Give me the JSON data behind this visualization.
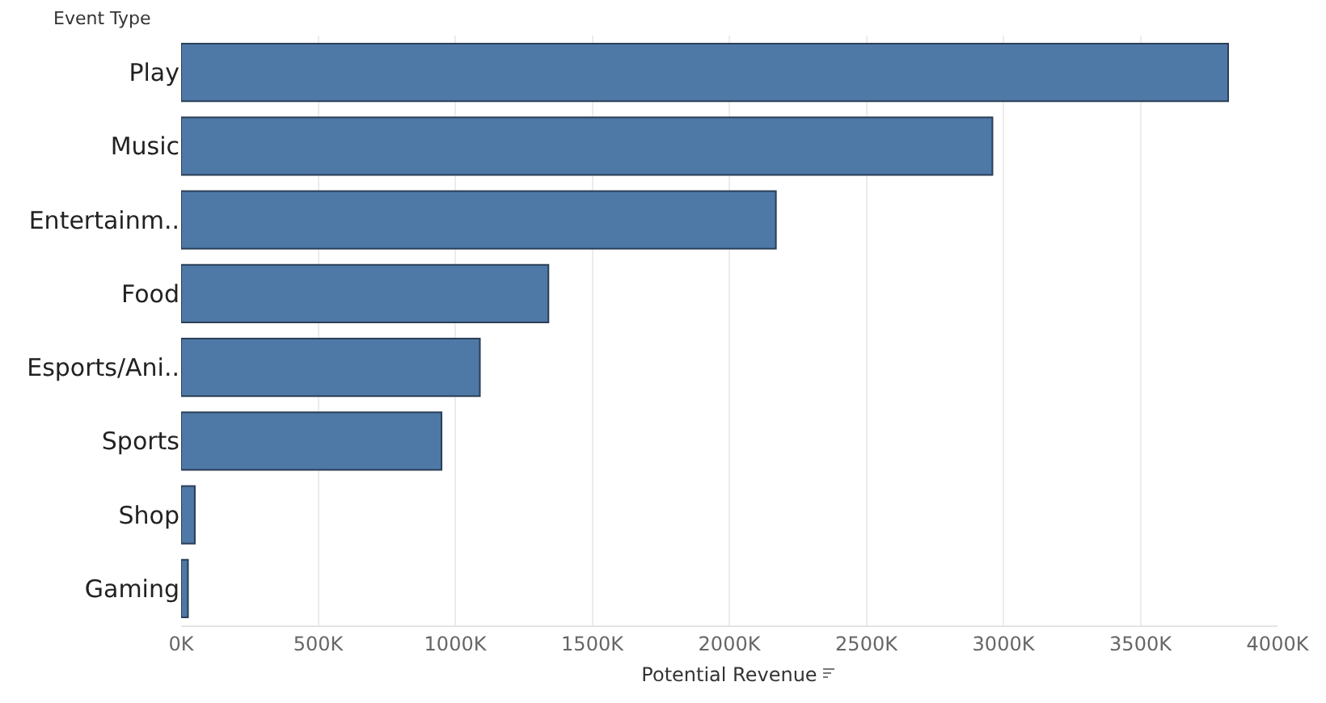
{
  "chart_data": {
    "type": "bar",
    "orientation": "horizontal",
    "ylabel": "Event Type",
    "xlabel": "Potential Revenue",
    "categories": [
      "Play",
      "Music",
      "Entertainm..",
      "Food",
      "Esports/Ani..",
      "Sports",
      "Shop",
      "Gaming"
    ],
    "values": [
      3820000,
      2960000,
      2170000,
      1340000,
      1090000,
      950000,
      50000,
      25000
    ],
    "color": "#4e78a6",
    "xlim": [
      0,
      4000000
    ],
    "xticks": [
      {
        "value": 0,
        "label": "0K"
      },
      {
        "value": 500000,
        "label": "500K"
      },
      {
        "value": 1000000,
        "label": "1000K"
      },
      {
        "value": 1500000,
        "label": "1500K"
      },
      {
        "value": 2000000,
        "label": "2000K"
      },
      {
        "value": 2500000,
        "label": "2500K"
      },
      {
        "value": 3000000,
        "label": "3000K"
      },
      {
        "value": 3500000,
        "label": "3500K"
      },
      {
        "value": 4000000,
        "label": "4000K"
      }
    ],
    "grid": "x"
  }
}
